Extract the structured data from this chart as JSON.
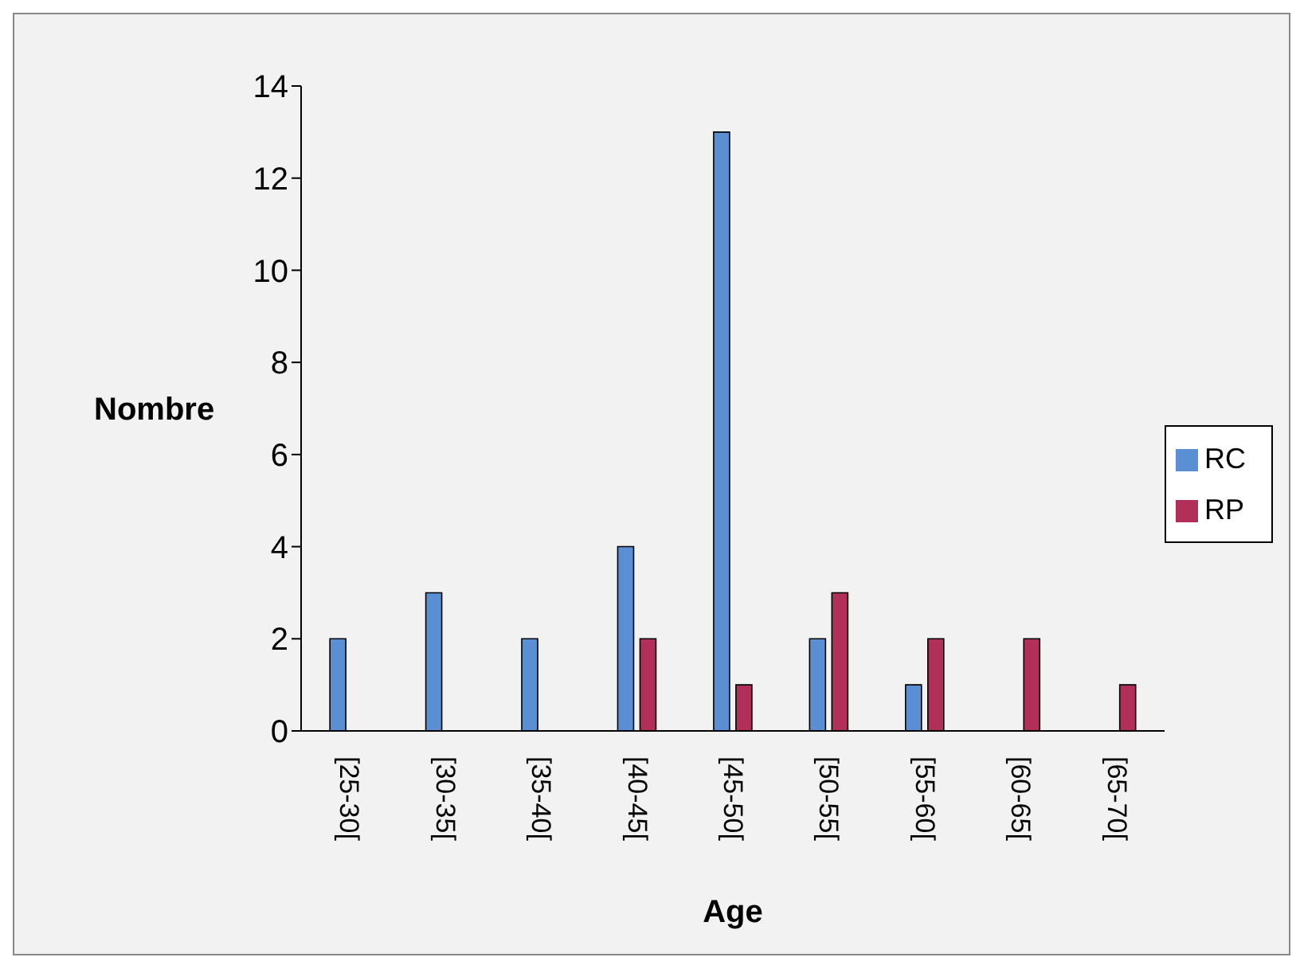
{
  "chart_data": {
    "type": "bar",
    "xlabel": "Age",
    "ylabel": "Nombre",
    "categories": [
      "[25-30[",
      "[30-35[",
      "[35-40[",
      "[40-45[",
      "[45-50[",
      "[50-55[",
      "[55-60[",
      "[60-65[",
      "[65-70["
    ],
    "series": [
      {
        "name": "RC",
        "color": "#5b8fd4",
        "values": [
          2,
          3,
          2,
          4,
          13,
          2,
          1,
          0,
          0
        ]
      },
      {
        "name": "RP",
        "color": "#b0305a",
        "values": [
          0,
          0,
          0,
          2,
          1,
          3,
          2,
          2,
          1
        ]
      }
    ],
    "ylim": [
      0,
      14
    ],
    "yticks": [
      0,
      2,
      4,
      6,
      8,
      10,
      12,
      14
    ],
    "grid": false,
    "legend": "right"
  }
}
